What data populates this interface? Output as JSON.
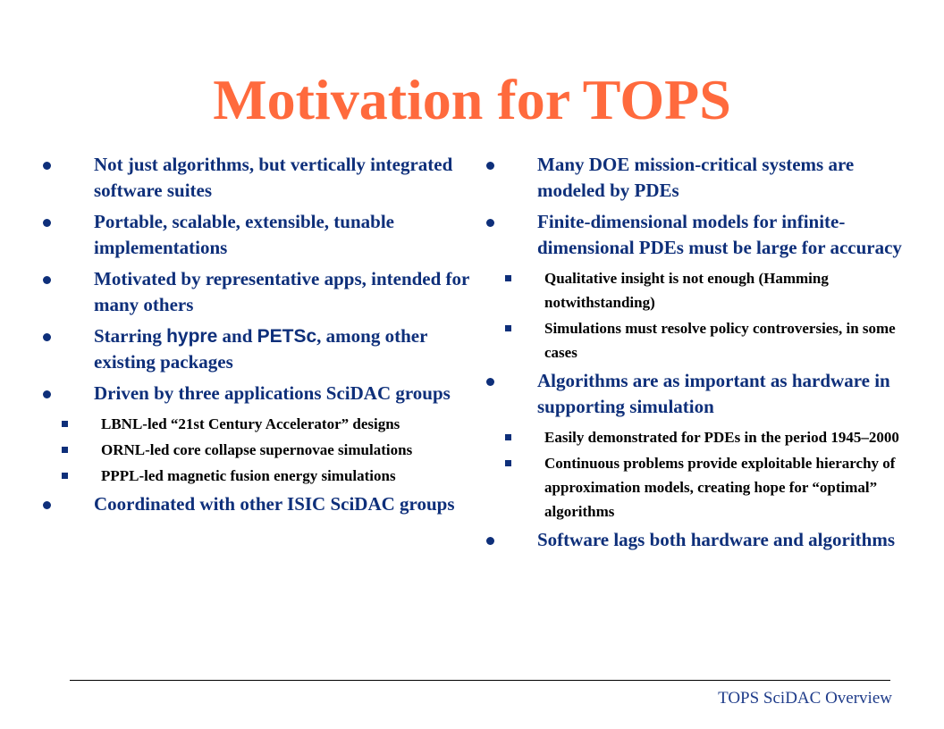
{
  "title": "Motivation for TOPS",
  "left": {
    "b1": "Not just algorithms, but vertically integrated software suites",
    "b2": "Portable, scalable, extensible, tunable implementations",
    "b3": "Motivated by representative apps, intended for many others",
    "b4_pre": "Starring ",
    "b4_hypre": "hypre",
    "b4_mid": " and ",
    "b4_petsc": "PETSc",
    "b4_post": ", among other existing packages",
    "b5": "Driven by three applications SciDAC groups",
    "b5_subs": [
      "LBNL-led “21st Century Accelerator” designs",
      "ORNL-led core collapse supernovae simulations",
      "PPPL-led magnetic fusion energy simulations"
    ],
    "b6": "Coordinated with other ISIC SciDAC groups"
  },
  "right": {
    "b1": "Many DOE mission-critical systems are modeled by PDEs",
    "b2": "Finite-dimensional models for infinite-dimensional PDEs must be large for accuracy",
    "b2_subs": [
      "Qualitative insight is not enough (Hamming notwithstanding)",
      "Simulations must resolve policy controversies, in some cases"
    ],
    "b3": "Algorithms are as important as hardware in supporting simulation",
    "b3_subs": [
      "Easily demonstrated for PDEs in the period 1945–2000",
      "Continuous problems provide exploitable hierarchy of approximation models, creating hope for “optimal” algorithms"
    ],
    "b4": "Software lags both hardware and algorithms"
  },
  "footer": "TOPS SciDAC Overview",
  "colors": {
    "title": "#ff6a3d",
    "text": "#0e2f7a",
    "subtext": "#000000"
  }
}
